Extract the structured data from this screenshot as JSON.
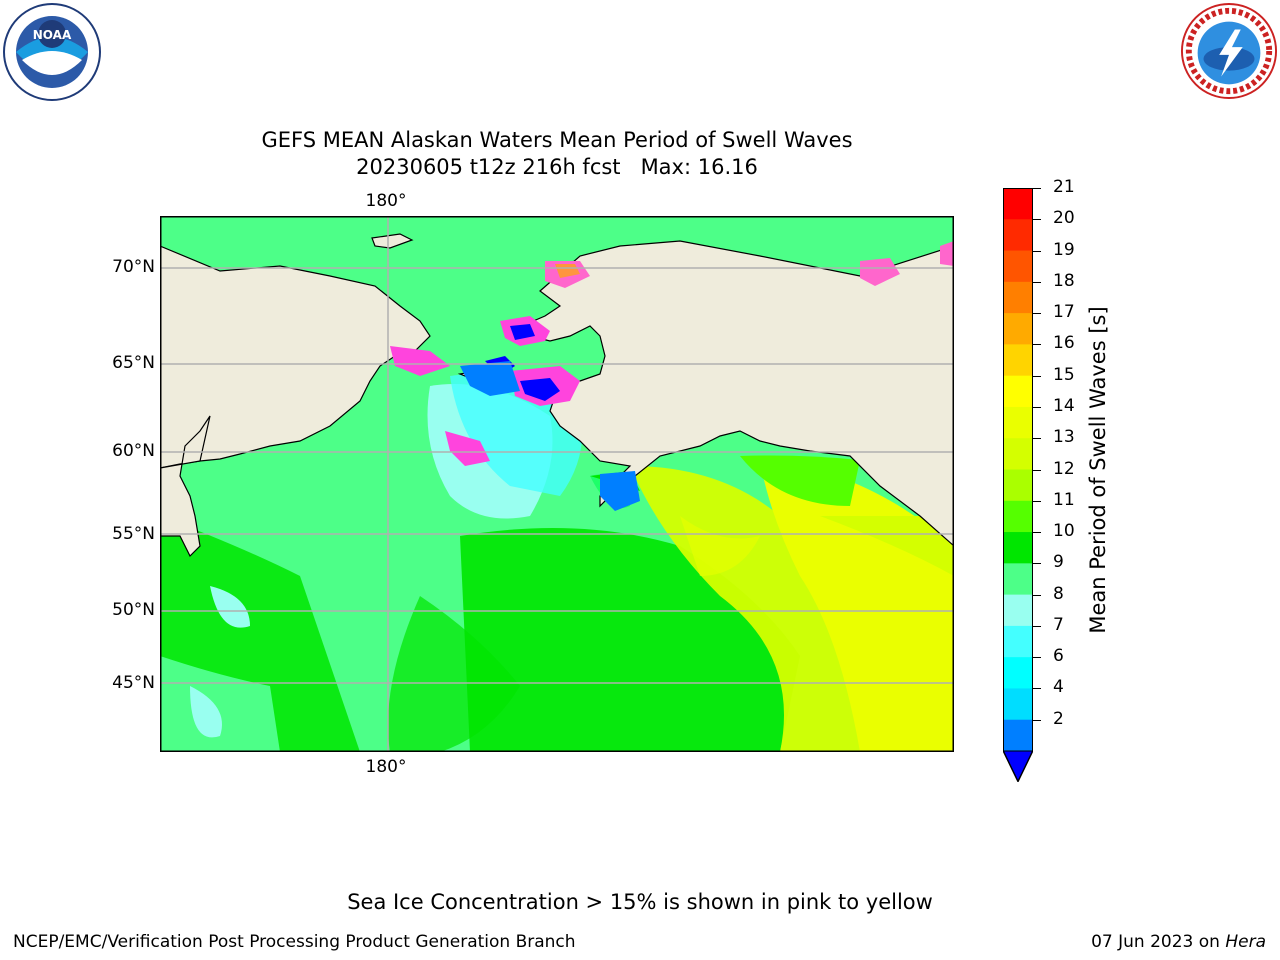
{
  "title": {
    "line1": "GEFS MEAN Alaskan Waters Mean Period of Swell Waves",
    "line2": "20230605 t12z 216h fcst   Max: 16.16"
  },
  "map": {
    "lat_labels": [
      "70°N",
      "65°N",
      "60°N",
      "55°N",
      "50°N",
      "45°N"
    ],
    "lon_label_top": "180°",
    "lon_label_bottom": "180°",
    "land_color": "#efecdc",
    "grid_color": "#b0b0b0"
  },
  "colorbar": {
    "label": "Mean Period of Swell Waves [s]",
    "ticks": [
      "21",
      "20",
      "19",
      "18",
      "17",
      "16",
      "15",
      "14",
      "13",
      "12",
      "11",
      "10",
      "9",
      "8",
      "7",
      "6",
      "4",
      "2"
    ],
    "colors": [
      "#ff0000",
      "#ff2a00",
      "#ff5500",
      "#ff7f00",
      "#ffaa00",
      "#ffd400",
      "#ffff00",
      "#eaff00",
      "#d4ff00",
      "#aaff00",
      "#55ff00",
      "#00e600",
      "#4dff88",
      "#99fff0",
      "#44ffff",
      "#00ffff",
      "#00ddff",
      "#007fff"
    ],
    "extend_color": "#0000ff"
  },
  "note": "Sea Ice Concentration > 15% is shown in pink to yellow",
  "footer": {
    "left": "NCEP/EMC/Verification Post Processing Product Generation Branch",
    "right_prefix": "07 Jun 2023 on ",
    "right_host": "Hera"
  },
  "logos": {
    "noaa_text": "NOAA",
    "nws_text": "NATIONAL WEATHER SERVICE"
  }
}
